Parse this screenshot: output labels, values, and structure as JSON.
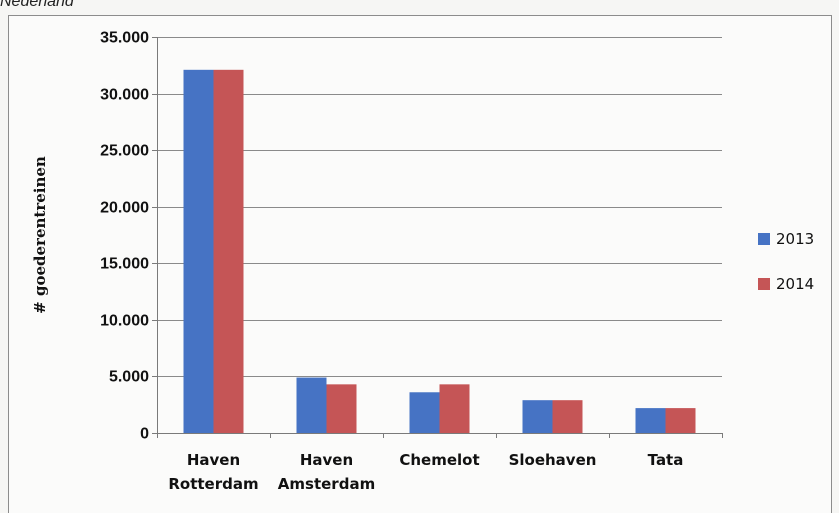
{
  "caption": "Nederland",
  "chart_data": {
    "type": "bar",
    "title": "",
    "xlabel": "",
    "ylabel": "# goederentreinen",
    "ylim": [
      0,
      35000
    ],
    "yticks": [
      {
        "value": 0,
        "label": "0"
      },
      {
        "value": 5000,
        "label": "5.000"
      },
      {
        "value": 10000,
        "label": "10.000"
      },
      {
        "value": 15000,
        "label": "15.000"
      },
      {
        "value": 20000,
        "label": "20.000"
      },
      {
        "value": 25000,
        "label": "25.000"
      },
      {
        "value": 30000,
        "label": "30.000"
      },
      {
        "value": 35000,
        "label": "35.000"
      }
    ],
    "categories": [
      [
        "Haven",
        "Rotterdam"
      ],
      [
        "Haven",
        "Amsterdam"
      ],
      [
        "Chemelot"
      ],
      [
        "Sloehaven"
      ],
      [
        "Tata"
      ]
    ],
    "series": [
      {
        "name": "2013",
        "color": "#4673c4",
        "values": [
          32100,
          4900,
          3600,
          2900,
          2200
        ]
      },
      {
        "name": "2014",
        "color": "#c55556",
        "values": [
          32100,
          4300,
          4300,
          2900,
          2200
        ]
      }
    ],
    "grid": true,
    "legend": "right"
  }
}
